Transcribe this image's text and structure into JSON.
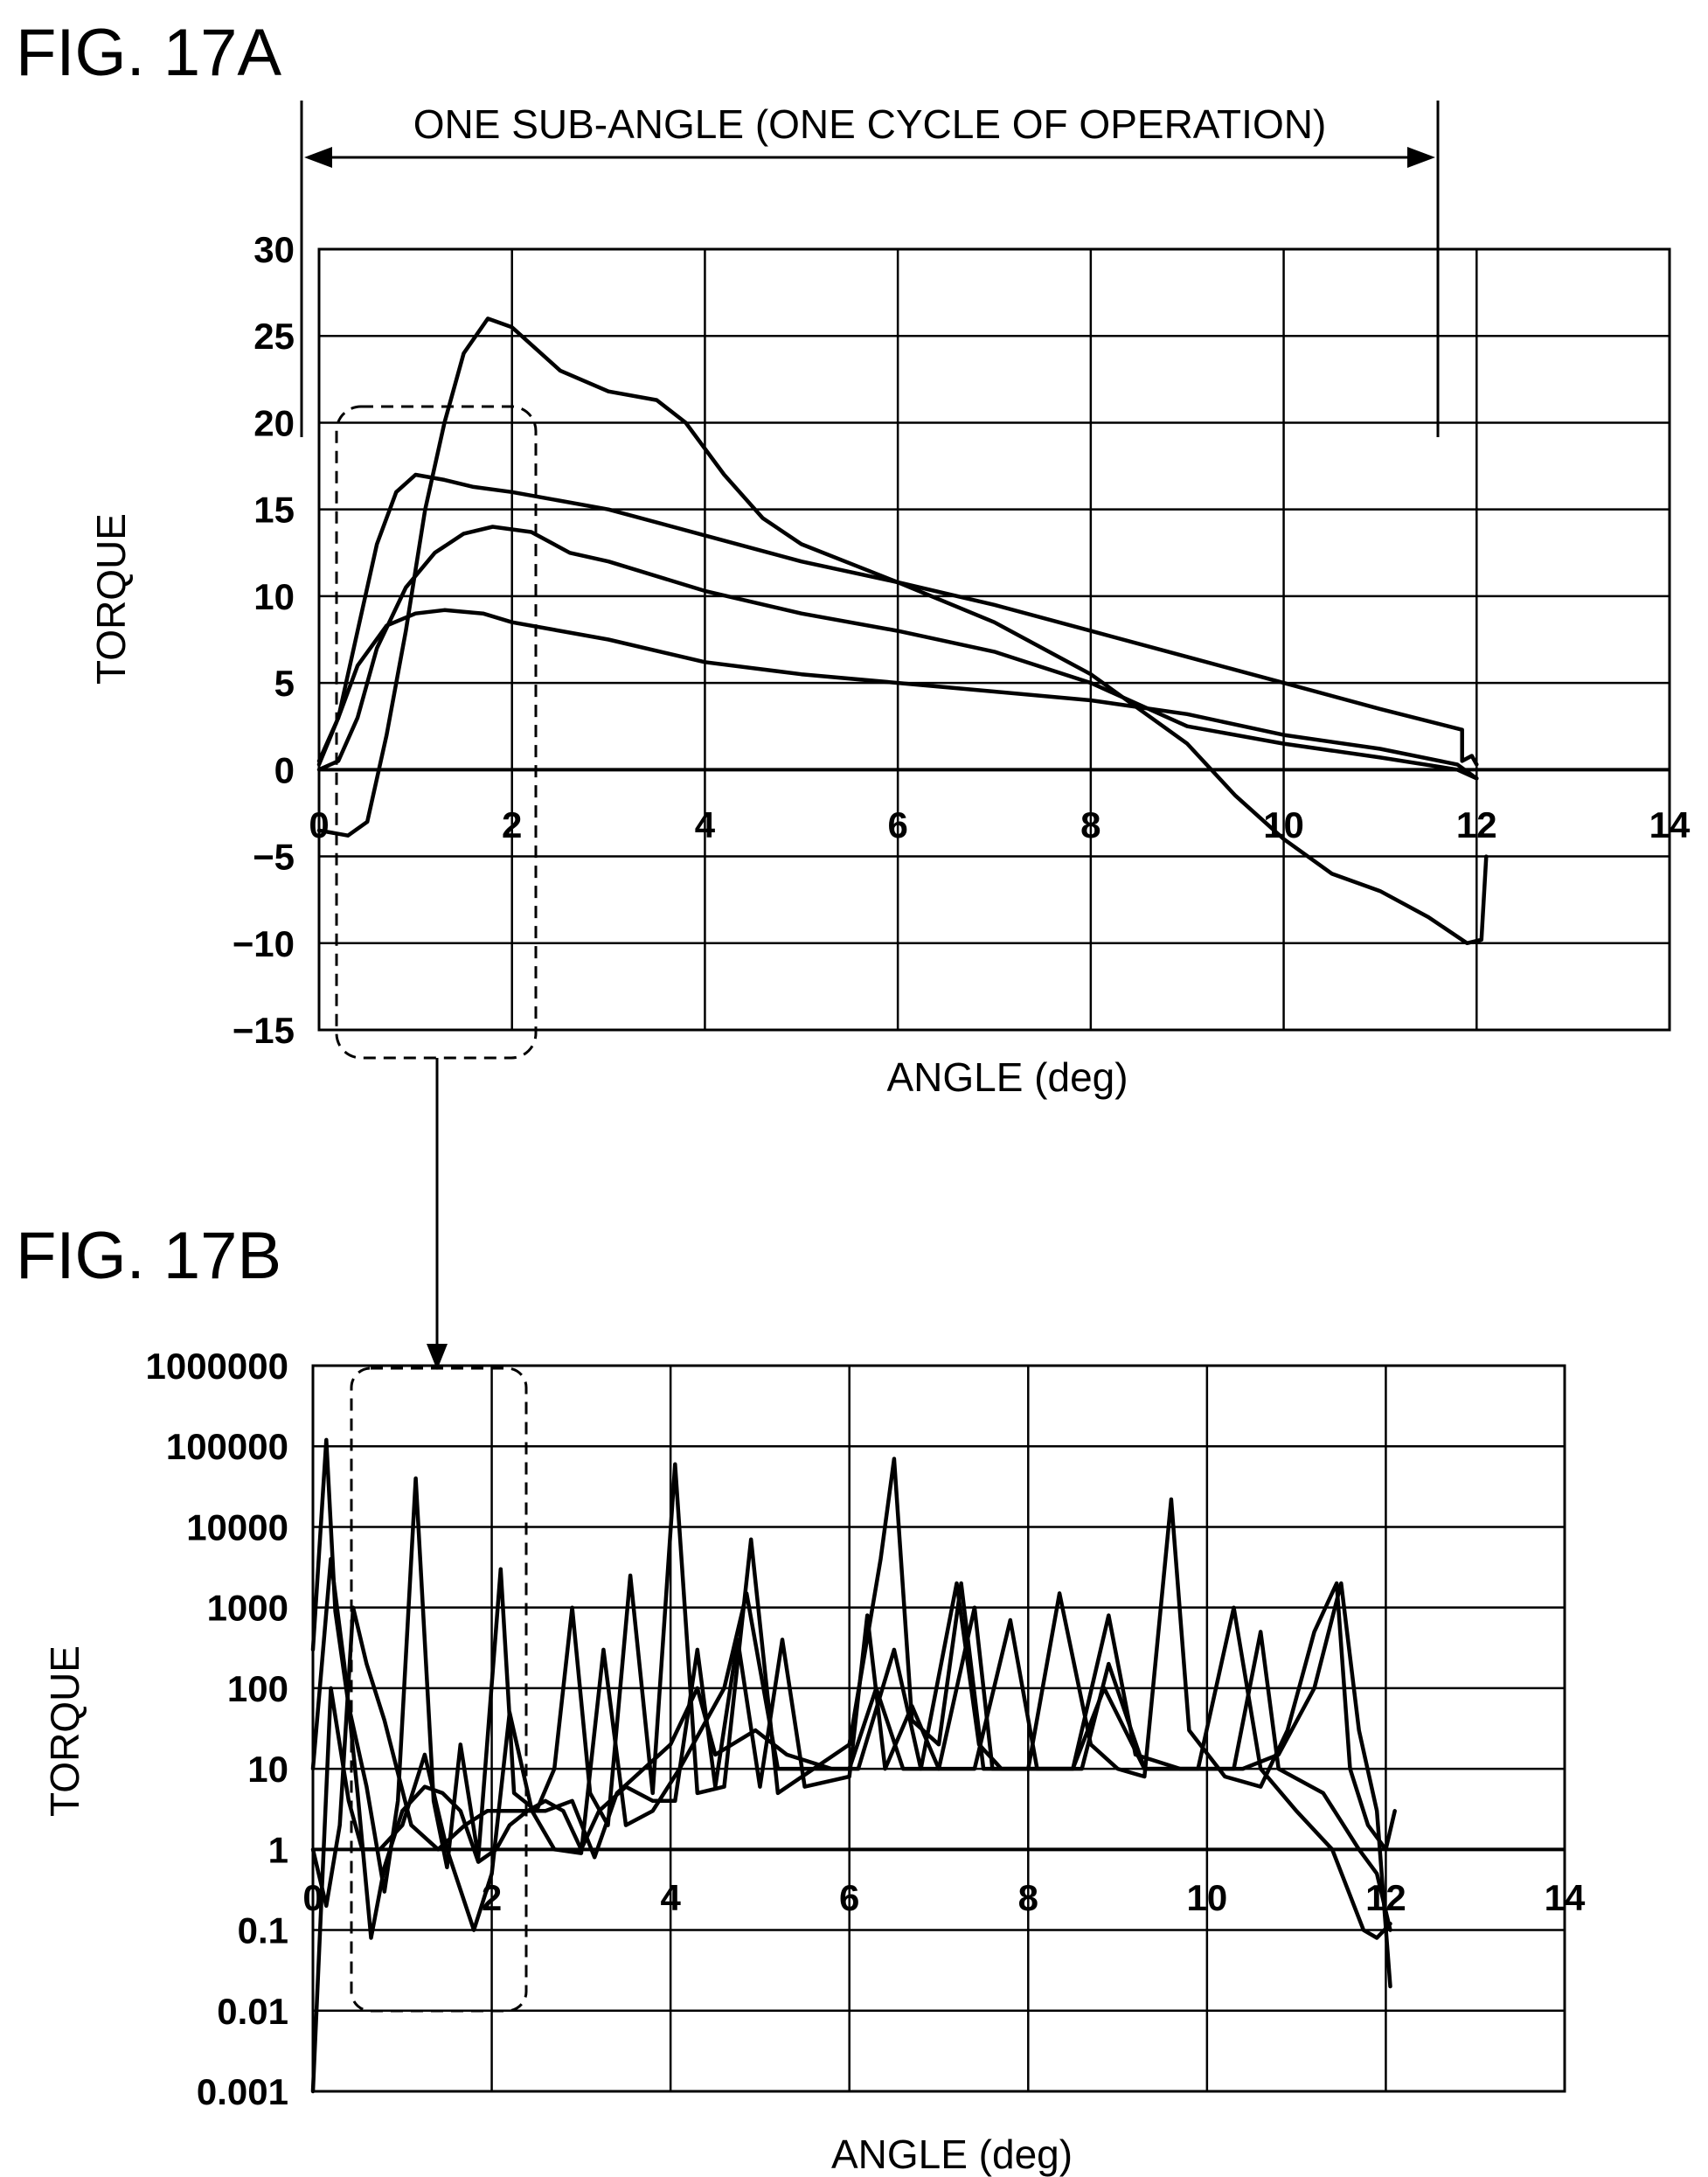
{
  "figure_a": {
    "title": "FIG. 17A",
    "annotation": "ONE SUB-ANGLE (ONE CYCLE OF OPERATION)"
  },
  "figure_b": {
    "title": "FIG. 17B"
  },
  "colors": {
    "line": "#000000",
    "background": "#ffffff"
  },
  "chart_data": [
    {
      "type": "line",
      "xlabel": "ANGLE (deg)",
      "ylabel": "TORQUE",
      "xlim": [
        0,
        14
      ],
      "ylim": [
        -15,
        30
      ],
      "x_ticks": [
        "0",
        "2",
        "4",
        "6",
        "8",
        "10",
        "12",
        "14"
      ],
      "y_ticks": [
        "30",
        "25",
        "20",
        "15",
        "10",
        "5",
        "0",
        "−5",
        "−10",
        "−15"
      ],
      "grid": true,
      "series": [
        {
          "points": [
            [
              0,
              -3.5
            ],
            [
              0.3,
              -3.8
            ],
            [
              0.5,
              -3
            ],
            [
              0.7,
              2
            ],
            [
              0.9,
              8
            ],
            [
              1.1,
              15
            ],
            [
              1.3,
              20
            ],
            [
              1.5,
              24
            ],
            [
              1.75,
              26
            ],
            [
              2,
              25.5
            ],
            [
              2.5,
              23
            ],
            [
              3,
              21.8
            ],
            [
              3.5,
              21.3
            ],
            [
              3.8,
              20
            ],
            [
              4.2,
              17
            ],
            [
              4.6,
              14.5
            ],
            [
              5,
              13
            ],
            [
              6,
              10.8
            ],
            [
              7,
              8.5
            ],
            [
              8,
              5.5
            ],
            [
              9,
              1.5
            ],
            [
              9.5,
              -1.5
            ],
            [
              10,
              -4
            ],
            [
              10.5,
              -6
            ],
            [
              11,
              -7
            ],
            [
              11.5,
              -8.5
            ],
            [
              11.9,
              -10
            ],
            [
              12.05,
              -9.8
            ],
            [
              12.1,
              -5
            ]
          ]
        },
        {
          "points": [
            [
              0,
              0.3
            ],
            [
              0.2,
              3
            ],
            [
              0.4,
              8
            ],
            [
              0.6,
              13
            ],
            [
              0.8,
              16
            ],
            [
              1,
              17
            ],
            [
              1.3,
              16.7
            ],
            [
              1.6,
              16.3
            ],
            [
              2,
              16
            ],
            [
              3,
              15
            ],
            [
              4,
              13.5
            ],
            [
              5,
              12
            ],
            [
              6,
              10.8
            ],
            [
              7,
              9.5
            ],
            [
              8,
              8
            ],
            [
              9,
              6.5
            ],
            [
              10,
              5
            ],
            [
              11,
              3.5
            ],
            [
              11.85,
              2.3
            ],
            [
              11.85,
              0.5
            ],
            [
              11.95,
              0.8
            ],
            [
              12,
              0.3
            ]
          ]
        },
        {
          "points": [
            [
              0,
              0
            ],
            [
              0.2,
              0.5
            ],
            [
              0.4,
              3
            ],
            [
              0.6,
              7
            ],
            [
              0.9,
              10.5
            ],
            [
              1.2,
              12.5
            ],
            [
              1.5,
              13.6
            ],
            [
              1.8,
              14
            ],
            [
              2.2,
              13.7
            ],
            [
              2.6,
              12.5
            ],
            [
              3,
              12
            ],
            [
              4,
              10.3
            ],
            [
              5,
              9
            ],
            [
              6,
              8
            ],
            [
              7,
              6.8
            ],
            [
              8,
              5
            ],
            [
              9,
              2.5
            ],
            [
              10,
              1.5
            ],
            [
              11,
              0.7
            ],
            [
              11.8,
              0
            ],
            [
              12,
              -0.5
            ]
          ]
        },
        {
          "points": [
            [
              0,
              0.5
            ],
            [
              0.2,
              3
            ],
            [
              0.4,
              6
            ],
            [
              0.7,
              8.3
            ],
            [
              1,
              9
            ],
            [
              1.3,
              9.2
            ],
            [
              1.7,
              9
            ],
            [
              2,
              8.5
            ],
            [
              3,
              7.5
            ],
            [
              4,
              6.2
            ],
            [
              5,
              5.5
            ],
            [
              6,
              5
            ],
            [
              7,
              4.5
            ],
            [
              8,
              4
            ],
            [
              9,
              3.2
            ],
            [
              10,
              2
            ],
            [
              11,
              1.2
            ],
            [
              11.8,
              0.3
            ],
            [
              12,
              -0.5
            ]
          ]
        }
      ]
    },
    {
      "type": "line",
      "xlabel": "ANGLE (deg)",
      "ylabel": "TORQUE",
      "xlim": [
        0,
        14
      ],
      "ylim": [
        0.001,
        1000000
      ],
      "log_y": true,
      "x_ticks": [
        "0",
        "2",
        "4",
        "6",
        "8",
        "10",
        "12",
        "14"
      ],
      "y_ticks": [
        "1000000",
        "100000",
        "10000",
        "1000",
        "100",
        "10",
        "1",
        "0.1",
        "0.01",
        "0.001"
      ],
      "grid": true,
      "series": [
        {
          "points": [
            [
              0,
              300
            ],
            [
              0.15,
              120000
            ],
            [
              0.25,
              900
            ],
            [
              0.4,
              60
            ],
            [
              0.6,
              6
            ],
            [
              0.8,
              0.3
            ],
            [
              0.95,
              4
            ],
            [
              1.15,
              40000
            ],
            [
              1.35,
              4
            ],
            [
              1.5,
              0.6
            ],
            [
              1.65,
              20
            ],
            [
              1.85,
              0.8
            ],
            [
              2.1,
              3000
            ],
            [
              2.25,
              5
            ],
            [
              2.5,
              3
            ],
            [
              2.7,
              10
            ],
            [
              2.9,
              1000
            ],
            [
              3.1,
              5
            ],
            [
              3.3,
              2
            ],
            [
              3.55,
              2500
            ],
            [
              3.8,
              5
            ],
            [
              4.05,
              60000
            ],
            [
              4.3,
              5
            ],
            [
              4.6,
              6
            ],
            [
              4.9,
              7000
            ],
            [
              5.2,
              5
            ],
            [
              5.6,
              10
            ],
            [
              6,
              20
            ],
            [
              6.35,
              4000
            ],
            [
              6.5,
              70000
            ],
            [
              6.7,
              40
            ],
            [
              7,
              20
            ],
            [
              7.25,
              2000
            ],
            [
              7.5,
              10
            ],
            [
              8,
              10
            ],
            [
              8.35,
              1500
            ],
            [
              8.7,
              20
            ],
            [
              9,
              10
            ],
            [
              9.3,
              8
            ],
            [
              9.6,
              22000
            ],
            [
              9.8,
              30
            ],
            [
              10.2,
              8
            ],
            [
              10.6,
              6
            ],
            [
              10.9,
              30
            ],
            [
              11.2,
              500
            ],
            [
              11.45,
              2000
            ],
            [
              11.6,
              10
            ],
            [
              11.8,
              2
            ],
            [
              12,
              1
            ],
            [
              12.1,
              3
            ]
          ]
        },
        {
          "points": [
            [
              0,
              10
            ],
            [
              0.2,
              4000
            ],
            [
              0.35,
              200
            ],
            [
              0.5,
              5
            ],
            [
              0.65,
              0.08
            ],
            [
              0.8,
              0.6
            ],
            [
              1,
              3
            ],
            [
              1.25,
              6
            ],
            [
              1.45,
              5
            ],
            [
              1.65,
              3
            ],
            [
              1.85,
              0.7
            ],
            [
              2.05,
              1
            ],
            [
              2.2,
              2
            ],
            [
              2.4,
              3
            ],
            [
              2.6,
              4
            ],
            [
              2.8,
              3
            ],
            [
              3,
              1
            ],
            [
              3.2,
              3
            ],
            [
              3.5,
              6
            ],
            [
              3.8,
              4
            ],
            [
              4.05,
              4
            ],
            [
              4.3,
              300
            ],
            [
              4.5,
              6
            ],
            [
              4.75,
              400
            ],
            [
              5,
              6
            ],
            [
              5.25,
              400
            ],
            [
              5.5,
              6
            ],
            [
              6,
              8
            ],
            [
              6.2,
              800
            ],
            [
              6.4,
              10
            ],
            [
              6.7,
              60
            ],
            [
              7,
              10
            ],
            [
              7.4,
              1000
            ],
            [
              7.6,
              10
            ],
            [
              8,
              10
            ],
            [
              8.5,
              10
            ],
            [
              8.9,
              800
            ],
            [
              9.2,
              15
            ],
            [
              9.7,
              10
            ],
            [
              10.3,
              10
            ],
            [
              10.6,
              500
            ],
            [
              10.8,
              10
            ],
            [
              11.3,
              5
            ],
            [
              11.7,
              1
            ],
            [
              11.9,
              0.5
            ],
            [
              12.05,
              0.1
            ]
          ]
        },
        {
          "points": [
            [
              0,
              1
            ],
            [
              0.15,
              0.2
            ],
            [
              0.3,
              2
            ],
            [
              0.45,
              1000
            ],
            [
              0.6,
              200
            ],
            [
              0.8,
              40
            ],
            [
              1.1,
              2
            ],
            [
              1.4,
              1
            ],
            [
              1.7,
              2
            ],
            [
              1.95,
              3
            ],
            [
              2.3,
              3
            ],
            [
              2.6,
              3
            ],
            [
              2.9,
              4
            ],
            [
              3.15,
              0.8
            ],
            [
              3.4,
              5
            ],
            [
              3.7,
              10
            ],
            [
              4,
              20
            ],
            [
              4.3,
              100
            ],
            [
              4.5,
              15
            ],
            [
              4.95,
              30
            ],
            [
              5.3,
              15
            ],
            [
              5.8,
              10
            ],
            [
              6.1,
              10
            ],
            [
              6.5,
              300
            ],
            [
              6.8,
              10
            ],
            [
              7.2,
              2000
            ],
            [
              7.45,
              20
            ],
            [
              7.7,
              10
            ],
            [
              8,
              10
            ],
            [
              8.25,
              10
            ],
            [
              8.5,
              10
            ],
            [
              8.85,
              100
            ],
            [
              9.3,
              10
            ],
            [
              9.6,
              10
            ],
            [
              9.9,
              10
            ],
            [
              10.3,
              1000
            ],
            [
              10.6,
              10
            ],
            [
              11,
              3
            ],
            [
              11.4,
              1
            ],
            [
              11.75,
              0.1
            ],
            [
              11.9,
              0.08
            ],
            [
              12.05,
              0.12
            ]
          ]
        },
        {
          "points": [
            [
              0,
              0.001
            ],
            [
              0.2,
              100
            ],
            [
              0.4,
              4
            ],
            [
              0.55,
              1
            ],
            [
              0.75,
              1
            ],
            [
              1,
              2
            ],
            [
              1.25,
              15
            ],
            [
              1.5,
              1
            ],
            [
              1.8,
              0.1
            ],
            [
              2,
              0.5
            ],
            [
              2.2,
              50
            ],
            [
              2.45,
              3
            ],
            [
              2.7,
              1
            ],
            [
              3,
              0.9
            ],
            [
              3.25,
              300
            ],
            [
              3.5,
              2
            ],
            [
              3.8,
              3
            ],
            [
              4.1,
              10
            ],
            [
              4.6,
              100
            ],
            [
              4.85,
              1500
            ],
            [
              5.2,
              10
            ],
            [
              5.6,
              10
            ],
            [
              6,
              10
            ],
            [
              6.3,
              100
            ],
            [
              6.6,
              10
            ],
            [
              7,
              10
            ],
            [
              7.4,
              10
            ],
            [
              7.8,
              700
            ],
            [
              8.1,
              10
            ],
            [
              8.6,
              10
            ],
            [
              8.9,
              200
            ],
            [
              9.3,
              10
            ],
            [
              9.8,
              10
            ],
            [
              10.4,
              10
            ],
            [
              10.8,
              15
            ],
            [
              11.2,
              100
            ],
            [
              11.5,
              2000
            ],
            [
              11.7,
              30
            ],
            [
              11.9,
              3
            ],
            [
              12.05,
              0.02
            ]
          ]
        }
      ]
    }
  ]
}
